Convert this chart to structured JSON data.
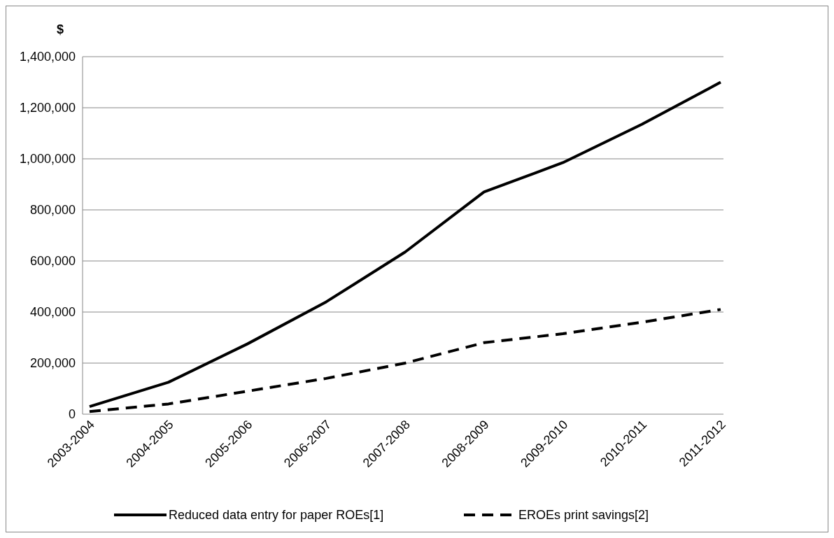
{
  "chart_data": {
    "type": "line",
    "ylabel": "$",
    "categories": [
      "2003-2004",
      "2004-2005",
      "2005-2006",
      "2006-2007",
      "2007-2008",
      "2008-2009",
      "2009-2010",
      "2010-2011",
      "2011-2012"
    ],
    "series": [
      {
        "name": "Reduced data entry for paper ROEs[1]",
        "color": "#000000",
        "line_style": "solid",
        "values": [
          30000,
          125000,
          275000,
          440000,
          635000,
          870000,
          985000,
          1135000,
          1300000
        ]
      },
      {
        "name": "EROEs print savings[2]",
        "color": "#000000",
        "line_style": "dashed",
        "values": [
          10000,
          40000,
          90000,
          140000,
          200000,
          280000,
          315000,
          360000,
          410000
        ]
      }
    ],
    "ylim": [
      0,
      1400000
    ],
    "yticks": [
      {
        "value": 0,
        "label": "0"
      },
      {
        "value": 200000,
        "label": "200,000"
      },
      {
        "value": 400000,
        "label": "400,000"
      },
      {
        "value": 600000,
        "label": "600,000"
      },
      {
        "value": 800000,
        "label": "800,000"
      },
      {
        "value": 1000000,
        "label": "1,000,000"
      },
      {
        "value": 1200000,
        "label": "1,200,000"
      },
      {
        "value": 1400000,
        "label": "1,400,000"
      }
    ],
    "grid": "y",
    "legend": "bottom",
    "marker": "none"
  }
}
